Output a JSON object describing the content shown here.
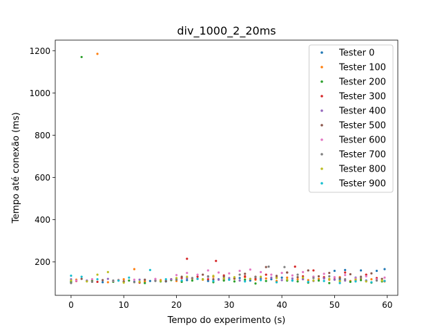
{
  "chart_data": {
    "type": "scatter",
    "title": "div_1000_2_20ms",
    "xlabel": "Tempo do experimento (s)",
    "ylabel": "Tempo até conexão (ms)",
    "xlim": [
      -3,
      62
    ],
    "ylim": [
      42,
      1250
    ],
    "x_ticks": [
      0,
      10,
      20,
      30,
      40,
      50,
      60
    ],
    "y_ticks": [
      200,
      400,
      600,
      800,
      1000,
      1200
    ],
    "grid": false,
    "legend": "top-right",
    "series": [
      {
        "name": "Tester 0",
        "color": "#1f77b4",
        "x": [
          0,
          3,
          6,
          9,
          12,
          15,
          18,
          20,
          22,
          24,
          26,
          28,
          30,
          32,
          34,
          36,
          38,
          40,
          42,
          44,
          46,
          48,
          50,
          51,
          52,
          54,
          55,
          56,
          58,
          59.5
        ],
        "y": [
          108,
          110,
          104,
          112,
          106,
          110,
          108,
          118,
          114,
          120,
          110,
          118,
          116,
          124,
          112,
          122,
          118,
          126,
          112,
          120,
          130,
          124,
          158,
          118,
          162,
          126,
          160,
          112,
          158,
          166
        ]
      },
      {
        "name": "Tester 100",
        "color": "#ff7f0e",
        "x": [
          1,
          4,
          5,
          7,
          10,
          12,
          14,
          17,
          20,
          23,
          25,
          27,
          29,
          31,
          33,
          35,
          37,
          39,
          41,
          43,
          45,
          47,
          49,
          51,
          53,
          55,
          57,
          59.5
        ],
        "y": [
          116,
          112,
          1185,
          104,
          118,
          166,
          108,
          114,
          110,
          122,
          116,
          130,
          114,
          120,
          128,
          116,
          122,
          110,
          126,
          118,
          114,
          120,
          116,
          128,
          110,
          122,
          118,
          108
        ]
      },
      {
        "name": "Tester 200",
        "color": "#2ca02c",
        "x": [
          0,
          2,
          4,
          8,
          11,
          14,
          17,
          19,
          21,
          23,
          25,
          27,
          29,
          31,
          33,
          35,
          37,
          39,
          41,
          43,
          45,
          47,
          49,
          51,
          53,
          55,
          57,
          59
        ],
        "y": [
          104,
          1170,
          110,
          106,
          112,
          100,
          108,
          114,
          106,
          112,
          118,
          104,
          112,
          108,
          116,
          98,
          110,
          104,
          112,
          108,
          102,
          112,
          100,
          110,
          106,
          114,
          102,
          108
        ]
      },
      {
        "name": "Tester 300",
        "color": "#d62728",
        "x": [
          1,
          5,
          9,
          13,
          16,
          19,
          21,
          22,
          24,
          26,
          27.5,
          29,
          31,
          33,
          35,
          37,
          39,
          41,
          42.5,
          44,
          46,
          48,
          50,
          52,
          54,
          56,
          58,
          59.5
        ],
        "y": [
          110,
          106,
          114,
          102,
          112,
          118,
          124,
          215,
          130,
          118,
          205,
          136,
          124,
          132,
          120,
          140,
          126,
          150,
          178,
          132,
          160,
          128,
          118,
          150,
          112,
          140,
          124,
          110
        ]
      },
      {
        "name": "Tester 400",
        "color": "#9467bd",
        "x": [
          0,
          3,
          7,
          10,
          13,
          16,
          19,
          22,
          24,
          26,
          28,
          30,
          32,
          34,
          36,
          38,
          40,
          42,
          44,
          46,
          48,
          50,
          52,
          54,
          56,
          58
        ],
        "y": [
          118,
          112,
          120,
          108,
          116,
          112,
          118,
          124,
          120,
          130,
          116,
          124,
          112,
          120,
          118,
          126,
          114,
          122,
          118,
          110,
          122,
          116,
          112,
          120,
          110,
          114
        ]
      },
      {
        "name": "Tester 500",
        "color": "#8c564b",
        "x": [
          2,
          6,
          10,
          14,
          18,
          21,
          23,
          25,
          27,
          29,
          31,
          33,
          35,
          37,
          39,
          41,
          43,
          45,
          47,
          49,
          51,
          53,
          55,
          57,
          59
        ],
        "y": [
          120,
          114,
          108,
          116,
          110,
          130,
          124,
          140,
          118,
          130,
          122,
          144,
          130,
          176,
          134,
          150,
          128,
          160,
          132,
          148,
          124,
          142,
          130,
          146,
          120
        ]
      },
      {
        "name": "Tester 600",
        "color": "#e377c2",
        "x": [
          1,
          4,
          8,
          12,
          16,
          20,
          22,
          24,
          26,
          28,
          30,
          32,
          34,
          36,
          38,
          40,
          42,
          44,
          46,
          48,
          50,
          52,
          54,
          56,
          58,
          59.5
        ],
        "y": [
          112,
          118,
          110,
          116,
          120,
          138,
          148,
          140,
          160,
          150,
          146,
          158,
          164,
          152,
          140,
          148,
          136,
          152,
          130,
          144,
          128,
          138,
          124,
          132,
          118,
          126
        ]
      },
      {
        "name": "Tester 700",
        "color": "#7f7f7f",
        "x": [
          0,
          4,
          8,
          12,
          16,
          20,
          23,
          26,
          29,
          32,
          35,
          37.5,
          40.5,
          43,
          46,
          49,
          52,
          55,
          58
        ],
        "y": [
          100,
          106,
          112,
          104,
          110,
          116,
          124,
          132,
          120,
          140,
          128,
          178,
          176,
          140,
          124,
          132,
          118,
          126,
          112
        ]
      },
      {
        "name": "Tester 800",
        "color": "#bcbd22",
        "x": [
          0,
          3,
          5,
          7,
          10,
          13,
          17,
          20,
          22,
          25,
          27,
          29,
          31,
          34,
          36,
          39,
          41,
          44,
          46,
          49,
          51,
          54,
          56,
          59
        ],
        "y": [
          112,
          108,
          140,
          152,
          102,
          106,
          110,
          124,
          130,
          118,
          134,
          122,
          128,
          120,
          130,
          124,
          116,
          126,
          112,
          120,
          110,
          116,
          108,
          112
        ]
      },
      {
        "name": "Tester 900",
        "color": "#17becf",
        "x": [
          0,
          2,
          5,
          9,
          11,
          15,
          18,
          21,
          24,
          27,
          30,
          33,
          36,
          39,
          42,
          45,
          48,
          51,
          54,
          57,
          59.5
        ],
        "y": [
          135,
          130,
          118,
          112,
          126,
          162,
          118,
          112,
          120,
          110,
          116,
          108,
          114,
          104,
          112,
          106,
          110,
          100,
          108,
          104,
          110
        ]
      }
    ]
  }
}
